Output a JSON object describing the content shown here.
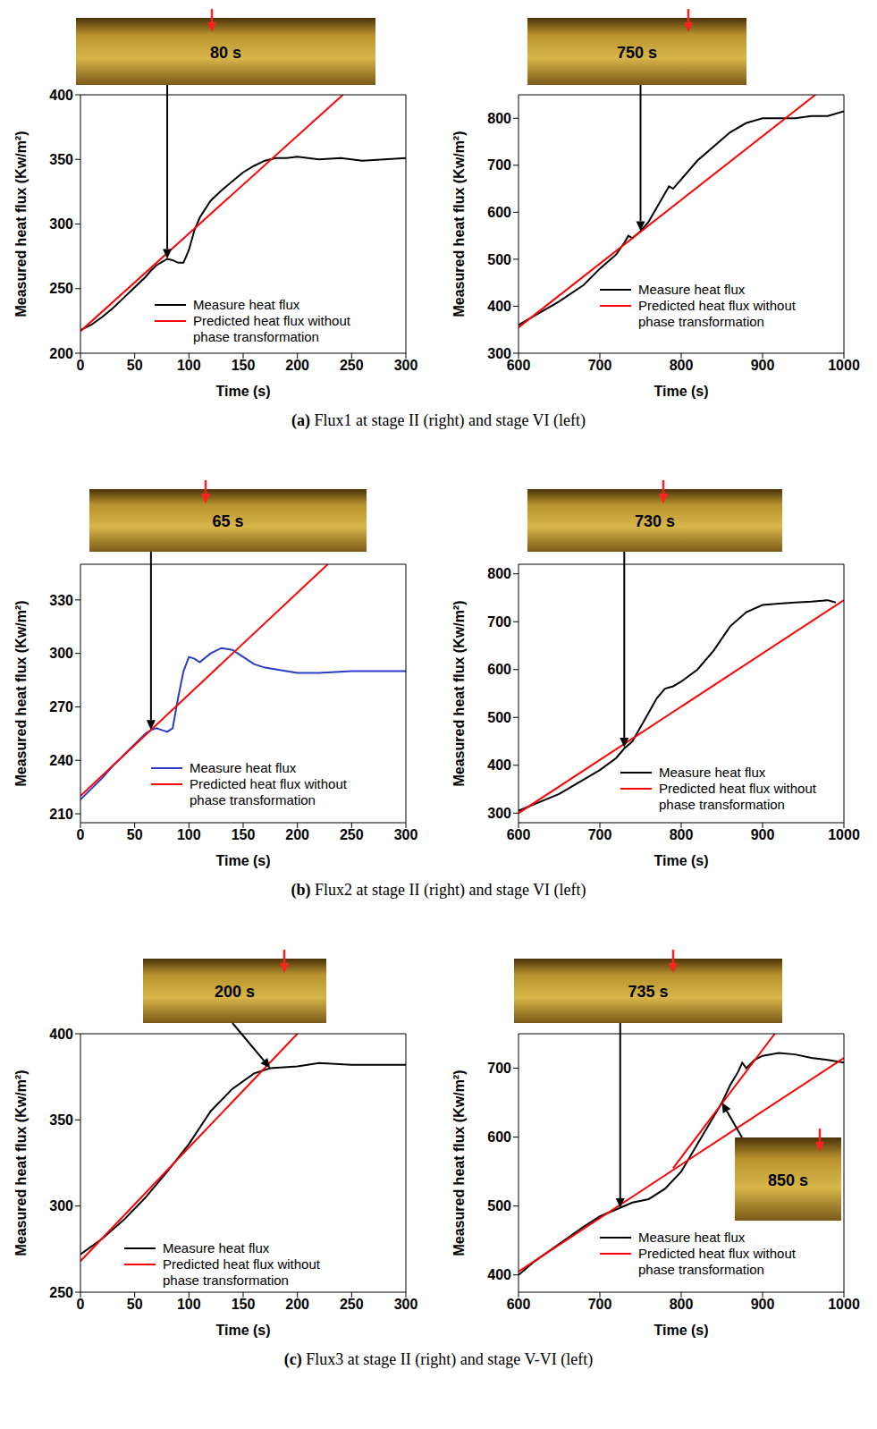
{
  "chart_data": [
    {
      "type": "line",
      "x_label": "Time (s)",
      "y_label": "Measured heat flux (Kw/m²)",
      "xlim": [
        0,
        300
      ],
      "xticks": [
        0,
        50,
        100,
        150,
        200,
        250,
        300
      ],
      "ylim": [
        200,
        400
      ],
      "yticks": [
        200,
        250,
        300,
        350,
        400
      ],
      "legend": "lower right",
      "series": [
        {
          "name": "Measure heat flux",
          "color": "#000000",
          "x": [
            0,
            10,
            20,
            30,
            40,
            50,
            60,
            65,
            70,
            80,
            85,
            90,
            95,
            100,
            105,
            110,
            120,
            130,
            140,
            150,
            160,
            170,
            180,
            190,
            200,
            220,
            240,
            260,
            280,
            300
          ],
          "values": [
            218,
            222,
            228,
            235,
            243,
            251,
            259,
            264,
            268,
            273,
            272,
            270,
            270,
            280,
            295,
            305,
            318,
            326,
            333,
            340,
            345,
            349,
            351,
            351,
            352,
            350,
            351,
            349,
            350,
            351
          ]
        },
        {
          "name": "Predicted heat flux without phase transformation",
          "color": "#ff0000",
          "x": [
            0,
            242
          ],
          "values": [
            217,
            400
          ]
        }
      ],
      "annotations": [
        {
          "text": "80 s",
          "x": 80,
          "y": 273
        }
      ]
    },
    {
      "type": "line",
      "x_label": "Time (s)",
      "y_label": "Measured heat flux (Kw/m²)",
      "xlim": [
        600,
        1000
      ],
      "xticks": [
        600,
        700,
        800,
        900,
        1000
      ],
      "ylim": [
        300,
        850
      ],
      "yticks": [
        300,
        400,
        500,
        600,
        700,
        800
      ],
      "legend": "lower right",
      "series": [
        {
          "name": "Measure heat flux",
          "color": "#000000",
          "x": [
            600,
            620,
            650,
            680,
            700,
            720,
            730,
            735,
            740,
            750,
            760,
            770,
            780,
            785,
            790,
            800,
            820,
            840,
            860,
            880,
            900,
            920,
            940,
            960,
            980,
            1000
          ],
          "values": [
            360,
            380,
            410,
            445,
            480,
            510,
            535,
            550,
            545,
            560,
            580,
            610,
            640,
            655,
            650,
            670,
            710,
            740,
            770,
            790,
            800,
            800,
            800,
            805,
            805,
            815
          ]
        },
        {
          "name": "Predicted heat flux without phase transformation",
          "color": "#ff0000",
          "x": [
            600,
            965
          ],
          "values": [
            355,
            850
          ]
        }
      ],
      "annotations": [
        {
          "text": "750 s",
          "x": 750,
          "y": 560
        }
      ]
    },
    {
      "type": "line",
      "x_label": "Time (s)",
      "y_label": "Measured heat flux (Kw/m²)",
      "xlim": [
        0,
        300
      ],
      "xticks": [
        0,
        50,
        100,
        150,
        200,
        250,
        300
      ],
      "ylim": [
        205,
        350
      ],
      "yticks": [
        210,
        240,
        270,
        300,
        330
      ],
      "legend": "lower right",
      "series": [
        {
          "name": "Measure heat flux",
          "color": "#2a3cc8",
          "x": [
            0,
            10,
            20,
            30,
            40,
            50,
            60,
            65,
            70,
            75,
            80,
            85,
            90,
            95,
            100,
            105,
            110,
            120,
            130,
            140,
            150,
            160,
            170,
            180,
            200,
            220,
            250,
            280,
            300
          ],
          "values": [
            218,
            224,
            230,
            237,
            243,
            249,
            255,
            257,
            258,
            257,
            256,
            258,
            275,
            290,
            298,
            297,
            295,
            300,
            303,
            302,
            298,
            294,
            292,
            291,
            289,
            289,
            290,
            290,
            290
          ]
        },
        {
          "name": "Predicted heat flux without phase transformation",
          "color": "#ff0000",
          "x": [
            0,
            228
          ],
          "values": [
            220,
            350
          ]
        }
      ],
      "annotations": [
        {
          "text": "65 s",
          "x": 65,
          "y": 257
        }
      ]
    },
    {
      "type": "line",
      "x_label": "Time (s)",
      "y_label": "Measured heat flux (Kw/m²)",
      "xlim": [
        600,
        1000
      ],
      "xticks": [
        600,
        700,
        800,
        900,
        1000
      ],
      "ylim": [
        280,
        820
      ],
      "yticks": [
        300,
        400,
        500,
        600,
        700,
        800
      ],
      "legend": "lower right",
      "series": [
        {
          "name": "Measure heat flux",
          "color": "#000000",
          "x": [
            600,
            650,
            700,
            720,
            730,
            740,
            750,
            760,
            770,
            780,
            790,
            800,
            820,
            840,
            860,
            880,
            900,
            920,
            940,
            960,
            980,
            990
          ],
          "values": [
            305,
            340,
            390,
            415,
            435,
            450,
            480,
            510,
            540,
            560,
            565,
            575,
            600,
            640,
            690,
            720,
            735,
            738,
            740,
            742,
            745,
            740
          ]
        },
        {
          "name": "Predicted heat flux without phase transformation",
          "color": "#ff0000",
          "x": [
            600,
            1000
          ],
          "values": [
            300,
            745
          ]
        }
      ],
      "annotations": [
        {
          "text": "730 s",
          "x": 730,
          "y": 437
        }
      ]
    },
    {
      "type": "line",
      "x_label": "Time (s)",
      "y_label": "Measured heat flux (Kw/m²)",
      "xlim": [
        0,
        300
      ],
      "xticks": [
        0,
        50,
        100,
        150,
        200,
        250,
        300
      ],
      "ylim": [
        250,
        400
      ],
      "yticks": [
        250,
        300,
        350,
        400
      ],
      "legend": "lower right",
      "series": [
        {
          "name": "Measure heat flux",
          "color": "#000000",
          "x": [
            0,
            20,
            40,
            60,
            80,
            100,
            120,
            140,
            160,
            175,
            200,
            220,
            250,
            280,
            300
          ],
          "values": [
            272,
            281,
            292,
            305,
            320,
            336,
            355,
            368,
            377,
            380,
            381,
            383,
            382,
            382,
            382
          ]
        },
        {
          "name": "Predicted heat flux without phase transformation",
          "color": "#ff0000",
          "x": [
            0,
            200
          ],
          "values": [
            268,
            400
          ]
        }
      ],
      "annotations": [
        {
          "text": "200 s",
          "x": 175,
          "y": 380
        }
      ]
    },
    {
      "type": "line",
      "x_label": "Time (s)",
      "y_label": "Measured heat flux (Kw/m²)",
      "xlim": [
        600,
        1000
      ],
      "xticks": [
        600,
        700,
        800,
        900,
        1000
      ],
      "ylim": [
        375,
        750
      ],
      "yticks": [
        400,
        500,
        600,
        700
      ],
      "legend": "lower right",
      "series": [
        {
          "name": "Measure heat flux",
          "color": "#000000",
          "x": [
            600,
            620,
            650,
            680,
            700,
            720,
            740,
            760,
            780,
            800,
            820,
            840,
            850,
            860,
            870,
            875,
            880,
            890,
            900,
            920,
            940,
            960,
            980,
            1000
          ],
          "values": [
            400,
            420,
            445,
            470,
            485,
            495,
            505,
            510,
            525,
            550,
            590,
            630,
            650,
            675,
            695,
            708,
            700,
            712,
            718,
            722,
            720,
            715,
            712,
            708
          ]
        },
        {
          "name": "Predicted heat flux without phase transformation",
          "color": "#ff0000",
          "x": [
            600,
            1000
          ],
          "values": [
            405,
            715
          ]
        },
        {
          "name": "Predicted heat flux without phase transformation",
          "color": "#ff0000",
          "x": [
            790,
            915
          ],
          "values": [
            555,
            750
          ]
        }
      ],
      "annotations": [
        {
          "text": "735 s",
          "x": 725,
          "y": 497
        },
        {
          "text": "850 s",
          "x": 850,
          "y": 650
        }
      ]
    }
  ],
  "captions": [
    {
      "label": "(a)",
      "text": "Flux1 at stage II (right) and stage VI (left)"
    },
    {
      "label": "(b)",
      "text": "Flux2 at stage II (right) and stage VI (left)"
    },
    {
      "label": "(c)",
      "text": "Flux3 at stage II (right) and stage V-VI (left)"
    }
  ]
}
